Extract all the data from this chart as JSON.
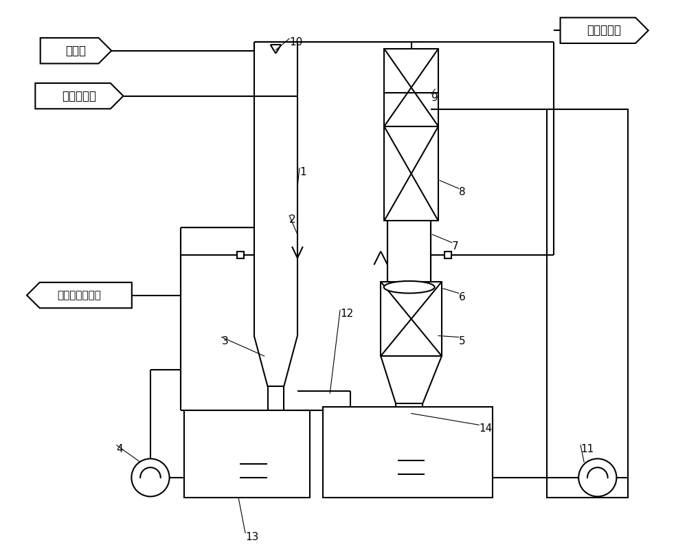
{
  "bg_color": "#ffffff",
  "line_color": "#000000",
  "line_width": 1.5,
  "thin_lw": 0.8,
  "label_工业水": "工业水",
  "label_除尘后废气": "除尘后废气",
  "label_排放至大气": "排放至大气",
  "label_去甲醛溶液储罐": "去甲醛溶液储罐",
  "numbers": [
    "1",
    "2",
    "3",
    "4",
    "5",
    "6",
    "7",
    "8",
    "9",
    "10",
    "11",
    "12",
    "13",
    "14"
  ],
  "font_size_chinese": 12,
  "font_size_number": 11
}
